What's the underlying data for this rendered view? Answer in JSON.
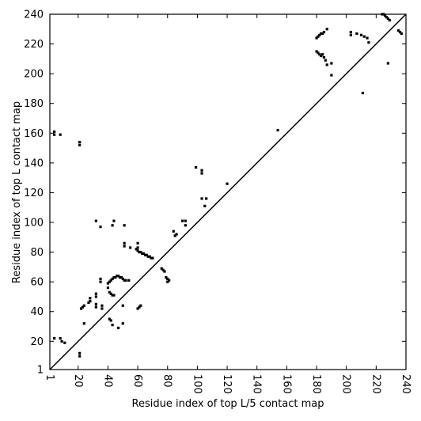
{
  "chart_data": {
    "type": "scatter",
    "xlabel": "Residue index of top L/5 contact map",
    "ylabel": "Residue index of top L contact map",
    "xlim": [
      1,
      240
    ],
    "ylim": [
      1,
      240
    ],
    "xticks": [
      1,
      20,
      40,
      60,
      80,
      100,
      120,
      140,
      160,
      180,
      200,
      220,
      240
    ],
    "yticks": [
      1,
      20,
      40,
      60,
      80,
      100,
      120,
      140,
      160,
      180,
      200,
      220,
      240
    ],
    "color": "#000000",
    "x": [
      4,
      4,
      8,
      21,
      21,
      32,
      35,
      43,
      44,
      51,
      51,
      51,
      55,
      60,
      59,
      60,
      60,
      61,
      62,
      63,
      64,
      65,
      66,
      67,
      68,
      69,
      70,
      35,
      35,
      40,
      41,
      42,
      43,
      44,
      45,
      46,
      47,
      48,
      49,
      50,
      51,
      52,
      54,
      40,
      41,
      42,
      43,
      44,
      28,
      28,
      27,
      32,
      32,
      32,
      32,
      36,
      36,
      24,
      22,
      23,
      21,
      21,
      4,
      8,
      9,
      11,
      50,
      47,
      42,
      43,
      24,
      41,
      50,
      61,
      62,
      60,
      76,
      77,
      78,
      79,
      80,
      80,
      81,
      84,
      86,
      85,
      90,
      92,
      92,
      99,
      103,
      103,
      103,
      106,
      105,
      120,
      154,
      180,
      181,
      182,
      183,
      184,
      185,
      187,
      185,
      186,
      180,
      181,
      182,
      183,
      184,
      187,
      190,
      190,
      203,
      203,
      207,
      210,
      212,
      214,
      215,
      211,
      224,
      225,
      226,
      227,
      228,
      229,
      228,
      235,
      236,
      237
    ],
    "values": [
      161,
      159,
      159,
      154,
      152,
      101,
      97,
      98,
      101,
      98,
      84,
      86,
      83,
      86,
      82,
      81,
      83,
      80,
      80,
      79,
      79,
      78,
      78,
      77,
      77,
      76,
      76,
      62,
      60,
      59,
      60,
      61,
      62,
      63,
      63,
      64,
      64,
      63,
      63,
      62,
      61,
      61,
      61,
      56,
      53,
      52,
      51,
      51,
      49,
      47,
      46,
      52,
      50,
      45,
      43,
      42,
      44,
      44,
      42,
      43,
      12,
      10,
      22,
      22,
      20,
      19,
      32,
      29,
      34,
      31,
      32,
      35,
      44,
      43,
      44,
      42,
      69,
      68,
      67,
      63,
      62,
      60,
      61,
      94,
      92,
      91,
      101,
      101,
      98,
      137,
      135,
      133,
      116,
      116,
      111,
      126,
      162,
      224,
      225,
      226,
      227,
      227,
      228,
      230,
      211,
      209,
      215,
      214,
      213,
      212,
      213,
      206,
      207,
      199,
      228,
      226,
      227,
      226,
      225,
      224,
      221,
      187,
      240,
      240,
      239,
      238,
      237,
      236,
      207,
      229,
      228,
      227
    ]
  }
}
